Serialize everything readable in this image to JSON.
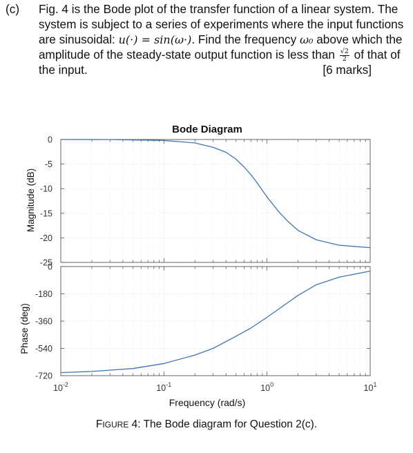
{
  "question": {
    "label": "(c)",
    "line1": "Fig. 4 is the Bode plot of the transfer function of a linear system. The",
    "line2": "system is subject to a series of experiments where the input functions",
    "line3_prefix": "are sinusoidal: ",
    "line3_math": "u(·) = sin(ω·)",
    "line3_suffix": ". Find the frequency ",
    "line3_omega": "ω₀",
    "line3_end": " above which the",
    "line4_prefix": "amplitude of the steady-state output function is less than ",
    "line4_frac_num": "√2",
    "line4_frac_den": "2",
    "line4_suffix": " of that of",
    "line5": "the input.",
    "marks": "[6 marks]"
  },
  "chart_data": {
    "type": "line",
    "title": "Bode Diagram",
    "xlabel": "Frequency (rad/s)",
    "xscale": "log",
    "xlim": [
      0.01,
      10
    ],
    "x_tick_labels": [
      {
        "base": "10",
        "exp": "-2"
      },
      {
        "base": "10",
        "exp": "-1"
      },
      {
        "base": "10",
        "exp": "0"
      },
      {
        "base": "10",
        "exp": "1"
      }
    ],
    "grid": true,
    "subplots": [
      {
        "name": "magnitude",
        "ylabel": "Magnitude (dB)",
        "ylim": [
          -25,
          0
        ],
        "yticks": [
          0,
          -5,
          -10,
          -15,
          -20,
          -25
        ],
        "ytick_labels": [
          "0",
          "-5",
          "-10",
          "-15",
          "-20",
          "-25"
        ],
        "x": [
          0.01,
          0.03,
          0.1,
          0.2,
          0.3,
          0.4,
          0.5,
          0.6,
          0.7,
          0.8,
          1.0,
          1.3,
          1.6,
          2.0,
          3.0,
          5.0,
          10.0
        ],
        "values": [
          0.0,
          -0.02,
          -0.2,
          -0.7,
          -1.6,
          -2.6,
          -4.0,
          -5.6,
          -7.2,
          -8.8,
          -11.7,
          -14.7,
          -16.7,
          -18.5,
          -20.4,
          -21.5,
          -22.0
        ]
      },
      {
        "name": "phase",
        "ylabel": "Phase (deg)",
        "ylim": [
          -720,
          0
        ],
        "yticks": [
          0,
          -180,
          -360,
          -540,
          -720
        ],
        "ytick_labels": [
          "0",
          "-180",
          "-360",
          "-540",
          "-720"
        ],
        "x": [
          0.01,
          0.02,
          0.05,
          0.1,
          0.2,
          0.3,
          0.5,
          0.7,
          1.0,
          1.5,
          2.0,
          3.0,
          5.0,
          10.0
        ],
        "values": [
          -700,
          -692,
          -673,
          -640,
          -584,
          -540,
          -460,
          -405,
          -335,
          -250,
          -190,
          -120,
          -70,
          -30
        ]
      }
    ]
  },
  "caption": {
    "small_caps_first": "F",
    "small_caps_rest": "IGURE",
    "text": " 4: The Bode diagram for Question 2(c)."
  }
}
